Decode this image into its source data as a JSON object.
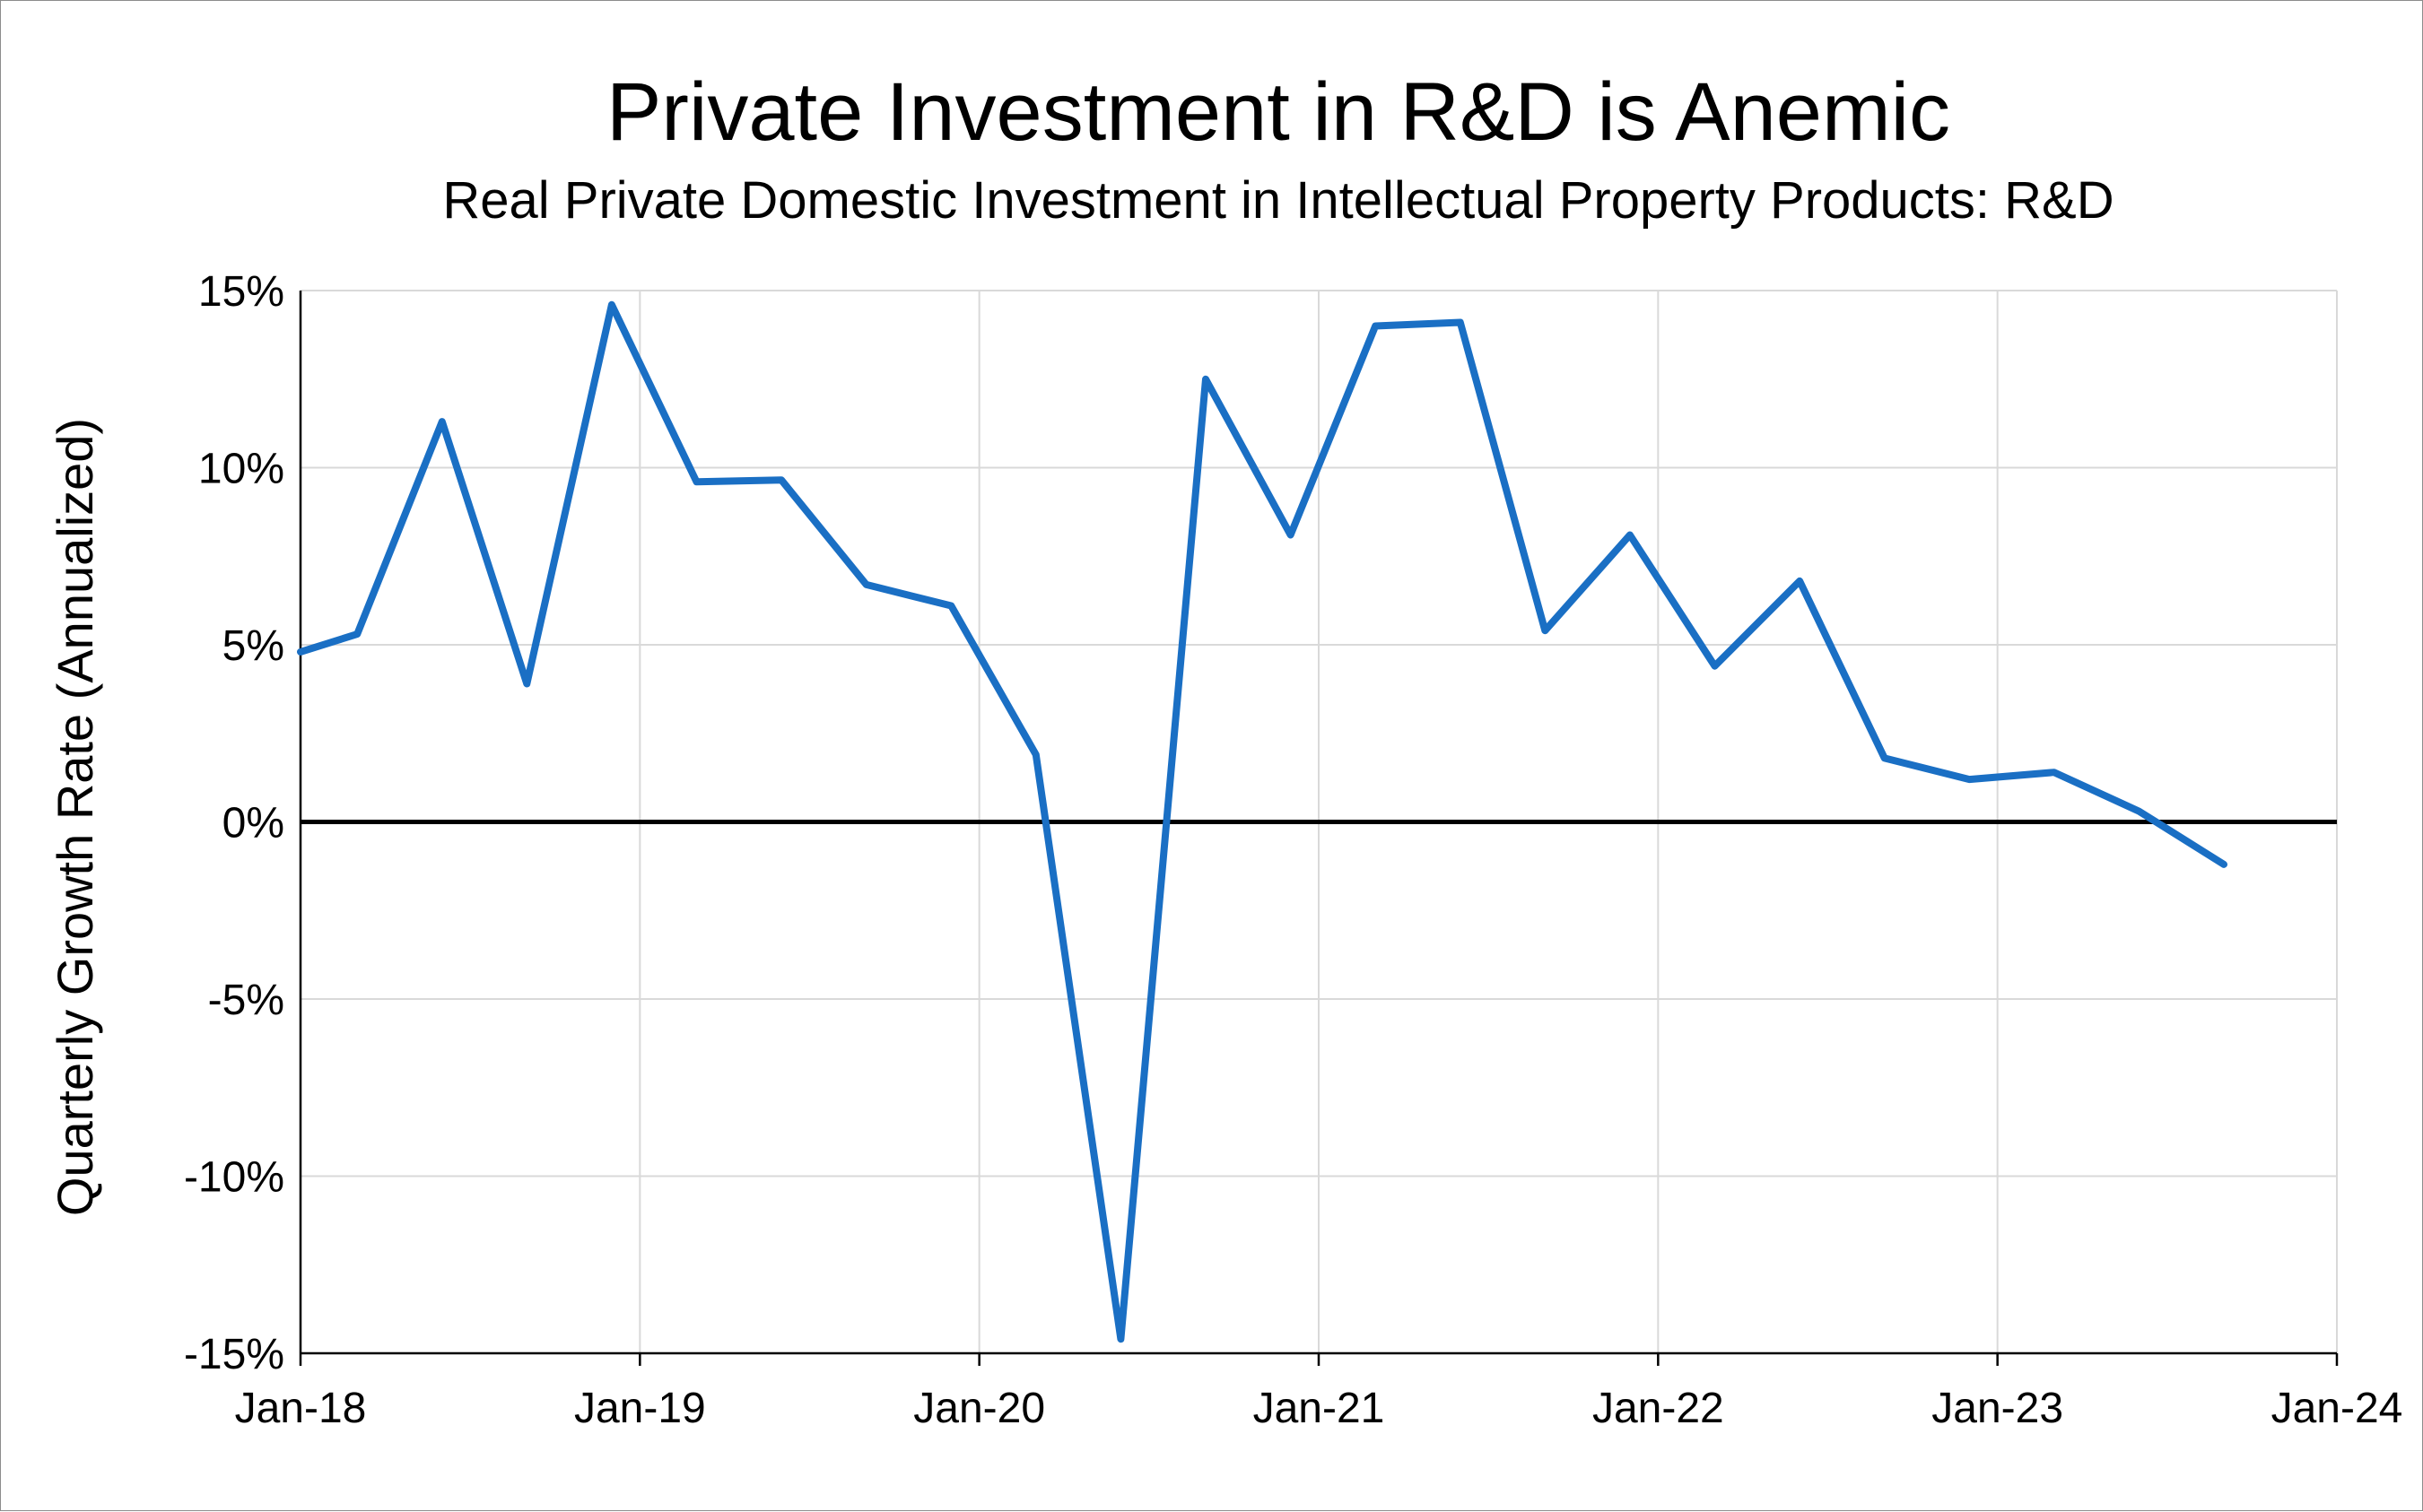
{
  "chart_data": {
    "type": "line",
    "title": "Private Investment in R&D is Anemic",
    "subtitle": "Real Private Domestic Investment in Intellectual Property Products: R&D",
    "xlabel": "",
    "ylabel": "Quarterly Growth Rate (Annualized)",
    "ylim": [
      -15,
      15
    ],
    "yticks": [
      {
        "value": 15,
        "label": "15%"
      },
      {
        "value": 10,
        "label": "10%"
      },
      {
        "value": 5,
        "label": "5%"
      },
      {
        "value": 0,
        "label": "0%"
      },
      {
        "value": -5,
        "label": "-5%"
      },
      {
        "value": -10,
        "label": "-10%"
      },
      {
        "value": -15,
        "label": "-15%"
      }
    ],
    "xlim": [
      2018.0,
      2024.0
    ],
    "xticks": [
      {
        "value": 2018,
        "label": "Jan-18"
      },
      {
        "value": 2019,
        "label": "Jan-19"
      },
      {
        "value": 2020,
        "label": "Jan-20"
      },
      {
        "value": 2021,
        "label": "Jan-21"
      },
      {
        "value": 2022,
        "label": "Jan-22"
      },
      {
        "value": 2023,
        "label": "Jan-23"
      },
      {
        "value": 2024,
        "label": "Jan-24"
      }
    ],
    "grid": true,
    "legend": "none",
    "series": [
      {
        "name": "R&D",
        "color": "#1a6fc4",
        "x": [
          2018.0,
          2018.167,
          2018.417,
          2018.667,
          2018.917,
          2019.167,
          2019.417,
          2019.667,
          2019.917,
          2020.167,
          2020.417,
          2020.667,
          2020.917,
          2021.167,
          2021.417,
          2021.667,
          2021.917,
          2022.167,
          2022.417,
          2022.667,
          2022.917,
          2023.167,
          2023.417,
          2023.667
        ],
        "values": [
          4.8,
          5.3,
          11.3,
          3.9,
          14.6,
          9.6,
          9.65,
          6.7,
          6.1,
          1.9,
          -14.6,
          12.5,
          8.1,
          14.0,
          14.1,
          5.4,
          8.1,
          4.4,
          6.8,
          1.8,
          1.2,
          1.4,
          0.3,
          -1.2
        ]
      }
    ]
  }
}
